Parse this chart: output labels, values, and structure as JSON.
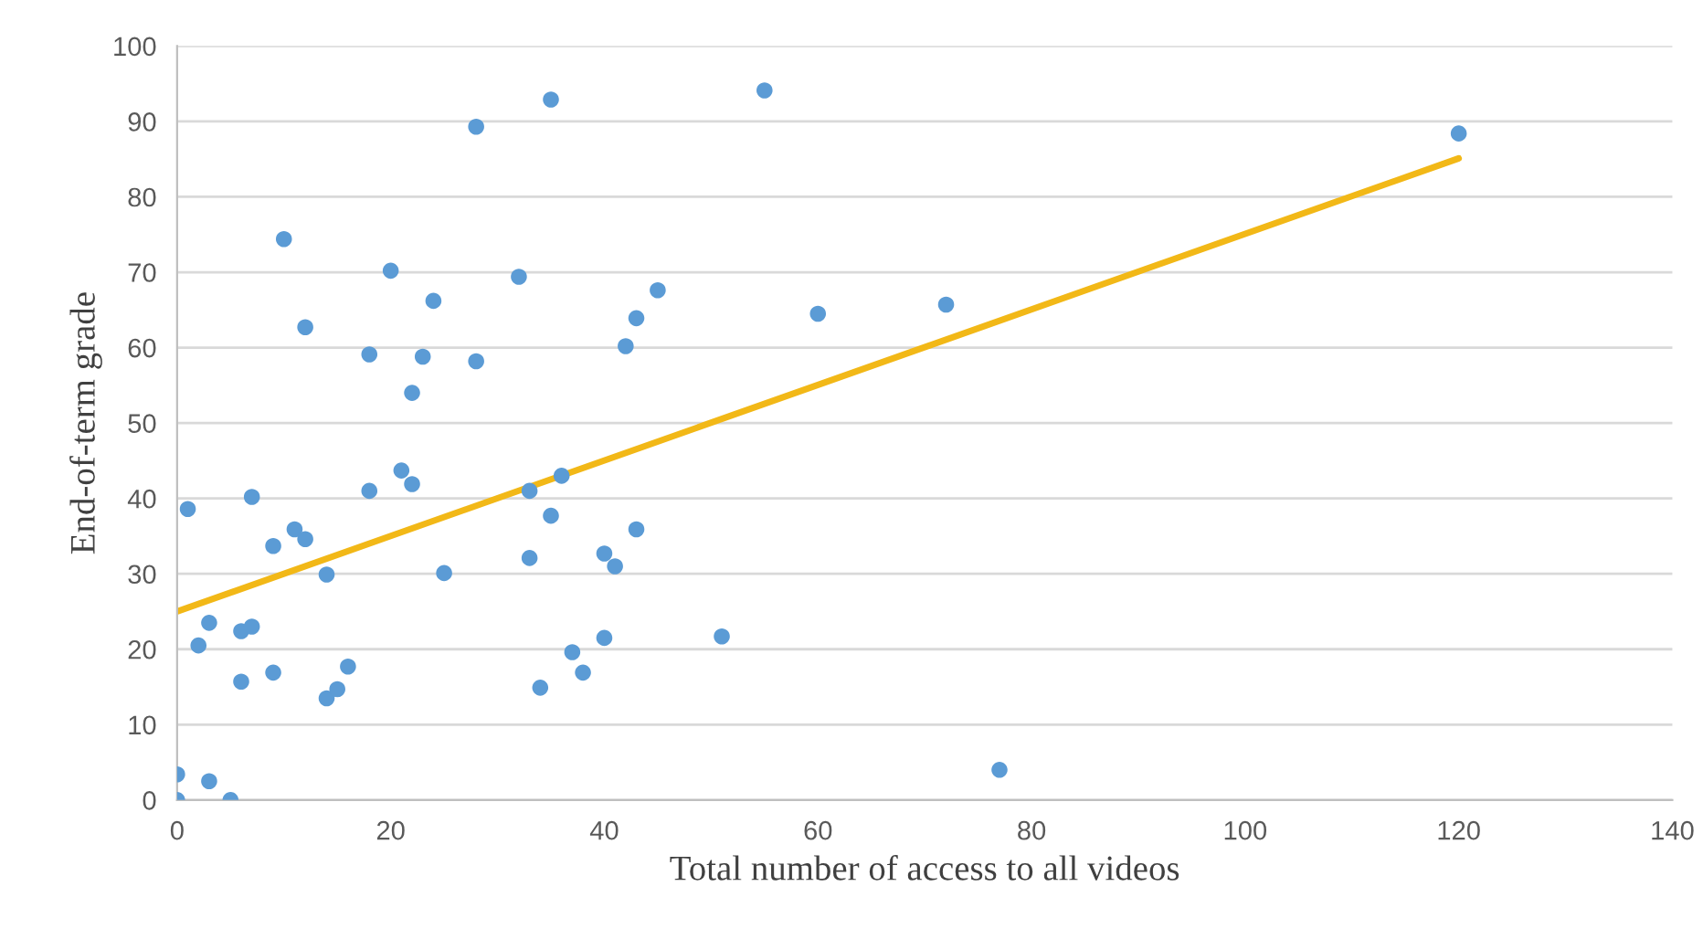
{
  "chart_data": {
    "type": "scatter",
    "xlabel": "Total number of access to all videos",
    "ylabel": "End-of-term grade",
    "xlim": [
      0,
      140
    ],
    "xticks": [
      0,
      20,
      40,
      60,
      80,
      100,
      120,
      140
    ],
    "ylim": [
      0,
      100
    ],
    "yticks": [
      0,
      10,
      20,
      30,
      40,
      50,
      60,
      70,
      80,
      90,
      100
    ],
    "grid": "y",
    "series": [
      {
        "marker": "circle",
        "color": "#5b9bd5",
        "x": [
          0,
          0,
          1,
          2,
          3,
          3,
          5,
          6,
          7,
          6,
          7,
          9,
          9,
          10,
          11,
          12,
          12,
          14,
          14,
          15,
          16,
          18,
          18,
          20,
          21,
          22,
          22,
          23,
          24,
          25,
          28,
          28,
          32,
          33,
          33,
          34,
          35,
          35,
          36,
          37,
          38,
          40,
          40,
          41,
          42,
          43,
          43,
          45,
          55,
          60,
          72,
          51,
          77,
          120
        ],
        "values": [
          3.4,
          0,
          38.6,
          20.5,
          23.5,
          2.5,
          0,
          22.4,
          23.0,
          15.7,
          40.2,
          33.7,
          16.9,
          74.4,
          35.9,
          34.6,
          62.7,
          29.9,
          13.5,
          14.7,
          17.7,
          59.1,
          41.0,
          70.2,
          43.7,
          41.9,
          54.0,
          58.8,
          66.2,
          30.1,
          89.3,
          58.2,
          69.4,
          41.0,
          32.1,
          14.9,
          92.9,
          37.7,
          43.0,
          19.6,
          16.9,
          32.7,
          21.5,
          31.0,
          60.2,
          63.9,
          35.9,
          67.6,
          94.1,
          64.5,
          65.7,
          21.7,
          4.0,
          88.4
        ]
      },
      {
        "type": "line",
        "color": "#f2b817",
        "line_style": "solid",
        "x": [
          0,
          120
        ],
        "values": [
          25.0,
          85.1
        ]
      }
    ]
  }
}
